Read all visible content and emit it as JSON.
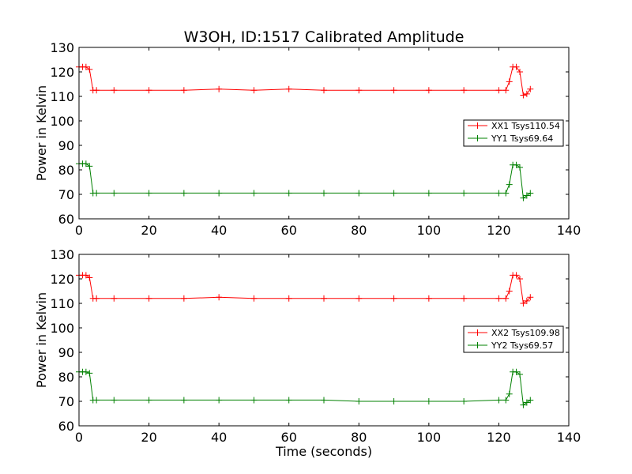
{
  "chart_data": [
    {
      "type": "line",
      "title": "W3OH, ID:1517 Calibrated Amplitude",
      "xlabel": "",
      "ylabel": "Power in Kelvin",
      "xlim": [
        0,
        140
      ],
      "ylim": [
        60,
        130
      ],
      "xticks": [
        0,
        20,
        40,
        60,
        80,
        100,
        120,
        140
      ],
      "yticks": [
        60,
        70,
        80,
        90,
        100,
        110,
        120,
        130
      ],
      "legend_position": "center-right",
      "series": [
        {
          "name": "XX1 Tsys110.54",
          "color": "#ff0000",
          "marker": "+",
          "x": [
            0,
            1,
            2,
            3,
            4,
            5,
            10,
            20,
            30,
            40,
            50,
            60,
            70,
            80,
            90,
            100,
            110,
            120,
            122,
            123,
            124,
            125,
            126,
            127,
            128,
            129
          ],
          "y": [
            122,
            122,
            122,
            121,
            112.5,
            112.5,
            112.5,
            112.5,
            112.5,
            113,
            112.5,
            113,
            112.5,
            112.5,
            112.5,
            112.5,
            112.5,
            112.5,
            112.5,
            116,
            122,
            122,
            120,
            110.5,
            111,
            113
          ]
        },
        {
          "name": "YY1 Tsys69.64",
          "color": "#008000",
          "marker": "+",
          "x": [
            0,
            1,
            2,
            3,
            4,
            5,
            10,
            20,
            30,
            40,
            50,
            60,
            70,
            80,
            90,
            100,
            110,
            120,
            122,
            123,
            124,
            125,
            126,
            127,
            128,
            129
          ],
          "y": [
            82.5,
            82.5,
            82.5,
            81.5,
            70.5,
            70.5,
            70.5,
            70.5,
            70.5,
            70.5,
            70.5,
            70.5,
            70.5,
            70.5,
            70.5,
            70.5,
            70.5,
            70.5,
            70.5,
            74,
            82,
            82,
            81,
            68.5,
            69.5,
            70.5
          ]
        }
      ]
    },
    {
      "type": "line",
      "title": "",
      "xlabel": "Time (seconds)",
      "ylabel": "Power in Kelvin",
      "xlim": [
        0,
        140
      ],
      "ylim": [
        60,
        130
      ],
      "xticks": [
        0,
        20,
        40,
        60,
        80,
        100,
        120,
        140
      ],
      "yticks": [
        60,
        70,
        80,
        90,
        100,
        110,
        120,
        130
      ],
      "legend_position": "center-right",
      "series": [
        {
          "name": "XX2 Tsys109.98",
          "color": "#ff0000",
          "marker": "+",
          "x": [
            0,
            1,
            2,
            3,
            4,
            5,
            10,
            20,
            30,
            40,
            50,
            60,
            70,
            80,
            90,
            100,
            110,
            120,
            122,
            123,
            124,
            125,
            126,
            127,
            128,
            129
          ],
          "y": [
            121.5,
            121.5,
            121.5,
            120.5,
            112,
            112,
            112,
            112,
            112,
            112.5,
            112,
            112,
            112,
            112,
            112,
            112,
            112,
            112,
            112,
            115,
            121.5,
            121.5,
            120,
            110,
            111,
            112.5
          ]
        },
        {
          "name": "YY2 Tsys69.57",
          "color": "#008000",
          "marker": "+",
          "x": [
            0,
            1,
            2,
            3,
            4,
            5,
            10,
            20,
            30,
            40,
            50,
            60,
            70,
            80,
            90,
            100,
            110,
            120,
            122,
            123,
            124,
            125,
            126,
            127,
            128,
            129
          ],
          "y": [
            82,
            82,
            82,
            81.5,
            70.5,
            70.5,
            70.5,
            70.5,
            70.5,
            70.5,
            70.5,
            70.5,
            70.5,
            70,
            70,
            70,
            70,
            70.5,
            70.5,
            73,
            82,
            82,
            81,
            68.5,
            69.5,
            70.5
          ]
        }
      ]
    }
  ]
}
